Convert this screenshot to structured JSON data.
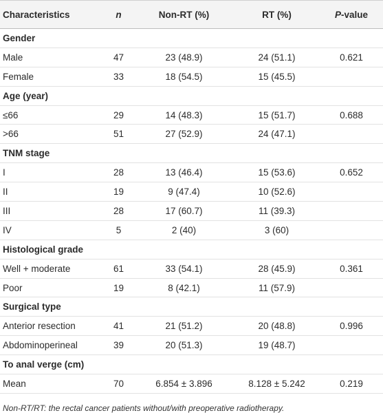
{
  "header": {
    "characteristics": "Characteristics",
    "n": "n",
    "non_rt": "Non-RT (%)",
    "rt": "RT (%)",
    "p_value": [
      "P",
      "-value"
    ]
  },
  "rows": [
    {
      "section": "Gender"
    },
    {
      "cells": [
        "Male",
        "47",
        "23 (48.9)",
        "24 (51.1)",
        "0.621"
      ]
    },
    {
      "cells": [
        "Female",
        "33",
        "18 (54.5)",
        "15 (45.5)"
      ]
    },
    {
      "section": "Age (year)"
    },
    {
      "cells": [
        "≤66",
        "29",
        "14 (48.3)",
        "15 (51.7)",
        "0.688"
      ]
    },
    {
      "cells": [
        ">66",
        "51",
        "27 (52.9)",
        "24 (47.1)"
      ]
    },
    {
      "section": "TNM stage"
    },
    {
      "cells": [
        "I",
        "28",
        "13 (46.4)",
        "15 (53.6)",
        "0.652"
      ]
    },
    {
      "cells": [
        "II",
        "19",
        "9 (47.4)",
        "10 (52.6)"
      ]
    },
    {
      "cells": [
        "III",
        "28",
        "17 (60.7)",
        "11 (39.3)"
      ]
    },
    {
      "cells": [
        "IV",
        "5",
        "2 (40)",
        "3 (60)"
      ]
    },
    {
      "section": "Histological grade"
    },
    {
      "cells": [
        "Well + moderate",
        "61",
        "33 (54.1)",
        "28 (45.9)",
        "0.361"
      ]
    },
    {
      "cells": [
        "Poor",
        "19",
        "8 (42.1)",
        "11 (57.9)"
      ]
    },
    {
      "section": "Surgical type"
    },
    {
      "cells": [
        "Anterior resection",
        "41",
        "21 (51.2)",
        "20 (48.8)",
        "0.996"
      ]
    },
    {
      "cells": [
        "Abdominoperineal",
        "39",
        "20 (51.3)",
        "19 (48.7)"
      ]
    },
    {
      "section": "To anal verge (cm)"
    },
    {
      "cells": [
        "Mean",
        "70",
        "6.854 ± 3.896",
        "8.128 ± 5.242",
        "0.219"
      ]
    }
  ],
  "footnote": "Non-RT/RT: the rectal cancer patients without/with preoperative radiotherapy."
}
